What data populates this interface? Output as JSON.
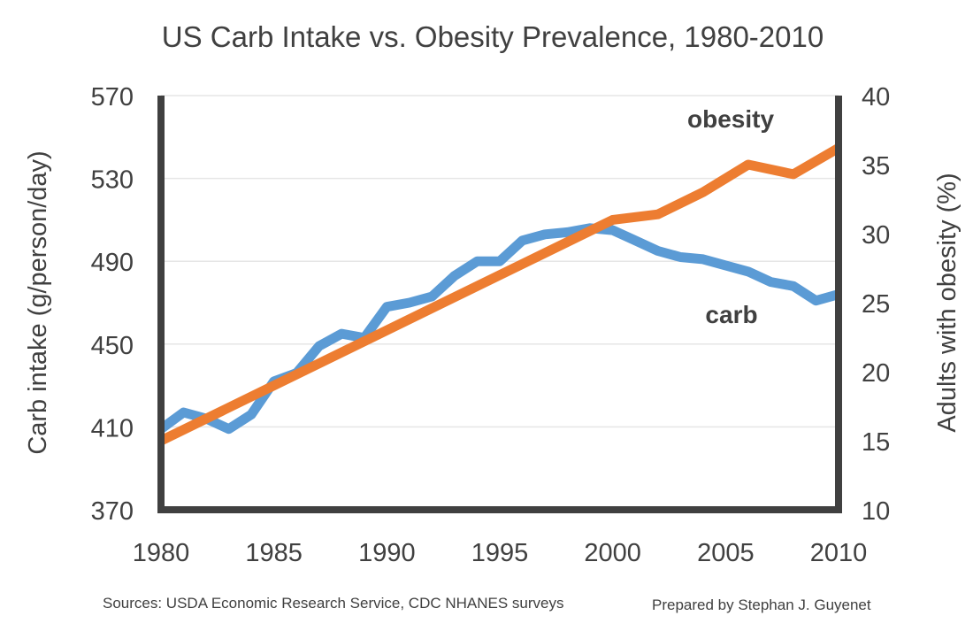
{
  "chart_data": {
    "type": "line",
    "title": "US Carb Intake vs. Obesity Prevalence, 1980-2010",
    "ylabel": "Carb intake (g/person/day)",
    "y2label": "Adults with obesity (%)",
    "xlim": [
      1980,
      2010
    ],
    "ylim": [
      370,
      570
    ],
    "y2lim": [
      10,
      40
    ],
    "x_ticks": [
      "1980",
      "1985",
      "1990",
      "1995",
      "2000",
      "2005",
      "2010"
    ],
    "y_ticks": [
      "370",
      "410",
      "450",
      "490",
      "530",
      "570"
    ],
    "y2_ticks": [
      "10",
      "15",
      "20",
      "25",
      "30",
      "35",
      "40"
    ],
    "grid": true,
    "series": [
      {
        "name": "carb",
        "axis": "left",
        "color": "#5b9bd5",
        "x": [
          1980,
          1981,
          1982,
          1983,
          1984,
          1985,
          1986,
          1987,
          1988,
          1989,
          1990,
          1991,
          1992,
          1993,
          1994,
          1995,
          1996,
          1997,
          1998,
          1999,
          2000,
          2001,
          2002,
          2003,
          2004,
          2005,
          2006,
          2007,
          2008,
          2009,
          2010
        ],
        "values": [
          409,
          417,
          414,
          409,
          416,
          432,
          436,
          449,
          455,
          453,
          468,
          470,
          473,
          483,
          490,
          490,
          500,
          503,
          504,
          506,
          505,
          500,
          495,
          492,
          491,
          488,
          485,
          480,
          478,
          471,
          474
        ]
      },
      {
        "name": "obesity",
        "axis": "right",
        "color": "#ed7d31",
        "x": [
          1980,
          2000,
          2002,
          2004,
          2006,
          2008,
          2010
        ],
        "values": [
          15,
          31,
          31.4,
          33,
          35,
          34.3,
          36.2
        ]
      }
    ],
    "annotations": [
      "Sources: USDA Economic Research Service, CDC NHANES surveys",
      "Prepared by Stephan J. Guyenet"
    ]
  }
}
